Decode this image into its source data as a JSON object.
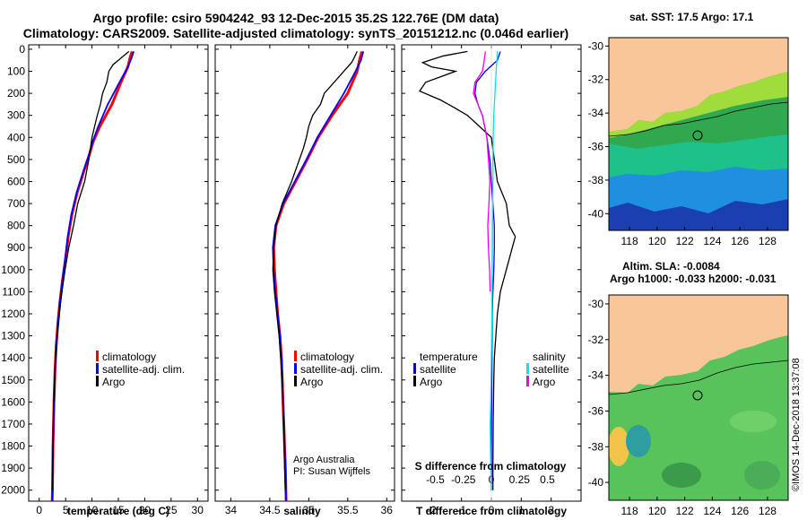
{
  "title": {
    "line1": "Argo profile: csiro 5904242_93 12-Dec-2015 35.2S 122.76E (DM data)",
    "line2": "Climatology: CARS2009. Satellite-adjusted climatology: synTS_20151212.nc (0.046d earlier)"
  },
  "colors": {
    "climatology": "#ff0000",
    "satellite": "#0000ff",
    "argo": "#000000",
    "sal_satellite": "#00e5ee",
    "sal_argo": "#ee00ee",
    "land": "#f9c699"
  },
  "depth_ticks": [
    0,
    100,
    200,
    300,
    400,
    500,
    600,
    700,
    800,
    900,
    1000,
    1100,
    1200,
    1300,
    1400,
    1500,
    1600,
    1700,
    1800,
    1900,
    2000
  ],
  "chart_data": [
    {
      "type": "line",
      "xlabel": "temperature (deg C)",
      "xlim": [
        -2,
        32
      ],
      "ylim": [
        2050,
        -20
      ],
      "xticks": [
        0,
        5,
        10,
        15,
        20,
        25,
        30
      ],
      "legend": [
        "climatology",
        "satellite-adj. clim.",
        "Argo"
      ],
      "series": [
        {
          "name": "climatology",
          "values": [
            [
              17.6,
              10
            ],
            [
              17.2,
              40
            ],
            [
              16.8,
              80
            ],
            [
              15.5,
              150
            ],
            [
              13.8,
              250
            ],
            [
              11.5,
              350
            ],
            [
              10.2,
              420
            ],
            [
              9.5,
              480
            ],
            [
              8.5,
              550
            ],
            [
              7.2,
              650
            ],
            [
              6.2,
              750
            ],
            [
              5.5,
              850
            ],
            [
              5.0,
              950
            ],
            [
              4.4,
              1050
            ],
            [
              3.9,
              1150
            ],
            [
              3.5,
              1250
            ],
            [
              3.2,
              1350
            ],
            [
              3.0,
              1450
            ],
            [
              2.8,
              1600
            ],
            [
              2.6,
              1800
            ],
            [
              2.5,
              2000
            ],
            [
              2.45,
              2050
            ]
          ]
        },
        {
          "name": "satellite-adj. clim.",
          "values": [
            [
              17.9,
              10
            ],
            [
              17.5,
              40
            ],
            [
              16.8,
              80
            ],
            [
              15.2,
              150
            ],
            [
              13.0,
              250
            ],
            [
              11.2,
              350
            ],
            [
              10.1,
              420
            ],
            [
              9.4,
              480
            ],
            [
              8.4,
              550
            ],
            [
              7.1,
              650
            ],
            [
              6.1,
              750
            ],
            [
              5.4,
              850
            ],
            [
              4.9,
              950
            ],
            [
              4.4,
              1050
            ],
            [
              3.9,
              1150
            ],
            [
              3.5,
              1250
            ],
            [
              3.2,
              1350
            ],
            [
              3.0,
              1450
            ],
            [
              2.8,
              1600
            ],
            [
              2.6,
              1800
            ],
            [
              2.5,
              2000
            ],
            [
              2.45,
              2050
            ]
          ]
        },
        {
          "name": "Argo",
          "values": [
            [
              17.0,
              10
            ],
            [
              16.0,
              30
            ],
            [
              15.0,
              50
            ],
            [
              14.0,
              70
            ],
            [
              13.2,
              100
            ],
            [
              12.8,
              150
            ],
            [
              12.0,
              200
            ],
            [
              11.6,
              250
            ],
            [
              11.0,
              300
            ],
            [
              10.5,
              350
            ],
            [
              10.0,
              400
            ],
            [
              9.7,
              450
            ],
            [
              9.4,
              500
            ],
            [
              8.6,
              600
            ],
            [
              7.3,
              700
            ],
            [
              6.5,
              800
            ],
            [
              5.6,
              900
            ],
            [
              4.9,
              1000
            ],
            [
              4.3,
              1100
            ],
            [
              3.8,
              1200
            ],
            [
              3.4,
              1300
            ],
            [
              3.1,
              1400
            ],
            [
              2.9,
              1500
            ],
            [
              2.7,
              1650
            ],
            [
              2.6,
              1800
            ],
            [
              2.5,
              2000
            ]
          ]
        }
      ]
    },
    {
      "type": "line",
      "xlabel": "salinity",
      "xlim": [
        33.8,
        36.1
      ],
      "ylim": [
        2050,
        -20
      ],
      "xticks": [
        34,
        34.5,
        35,
        35.5,
        36
      ],
      "legend": [
        "climatology",
        "satellite-adj. clim.",
        "Argo"
      ],
      "annotations": [
        "Argo Australia",
        "PI: Susan Wijffels"
      ],
      "series": [
        {
          "name": "climatology",
          "values": [
            [
              35.68,
              10
            ],
            [
              35.65,
              50
            ],
            [
              35.62,
              100
            ],
            [
              35.5,
              200
            ],
            [
              35.3,
              300
            ],
            [
              35.12,
              400
            ],
            [
              34.98,
              500
            ],
            [
              34.83,
              600
            ],
            [
              34.68,
              700
            ],
            [
              34.58,
              800
            ],
            [
              34.55,
              900
            ],
            [
              34.56,
              1000
            ],
            [
              34.58,
              1100
            ],
            [
              34.6,
              1200
            ],
            [
              34.63,
              1300
            ],
            [
              34.65,
              1400
            ],
            [
              34.66,
              1500
            ],
            [
              34.68,
              1700
            ],
            [
              34.7,
              1900
            ],
            [
              34.71,
              2050
            ]
          ]
        },
        {
          "name": "satellite-adj. clim.",
          "values": [
            [
              35.7,
              10
            ],
            [
              35.67,
              50
            ],
            [
              35.6,
              100
            ],
            [
              35.45,
              200
            ],
            [
              35.28,
              300
            ],
            [
              35.11,
              400
            ],
            [
              34.97,
              500
            ],
            [
              34.82,
              600
            ],
            [
              34.67,
              700
            ],
            [
              34.57,
              800
            ],
            [
              34.54,
              900
            ],
            [
              34.55,
              1000
            ],
            [
              34.57,
              1100
            ],
            [
              34.6,
              1200
            ],
            [
              34.63,
              1300
            ],
            [
              34.65,
              1400
            ],
            [
              34.66,
              1500
            ],
            [
              34.68,
              1700
            ],
            [
              34.7,
              1900
            ],
            [
              34.71,
              2050
            ]
          ]
        },
        {
          "name": "Argo",
          "values": [
            [
              35.62,
              10
            ],
            [
              35.58,
              40
            ],
            [
              35.55,
              60
            ],
            [
              35.5,
              80
            ],
            [
              35.4,
              120
            ],
            [
              35.3,
              160
            ],
            [
              35.2,
              200
            ],
            [
              35.15,
              250
            ],
            [
              35.05,
              300
            ],
            [
              35.0,
              350
            ],
            [
              34.97,
              400
            ],
            [
              34.93,
              450
            ],
            [
              34.88,
              500
            ],
            [
              34.78,
              600
            ],
            [
              34.66,
              700
            ],
            [
              34.58,
              800
            ],
            [
              34.55,
              900
            ],
            [
              34.54,
              1000
            ],
            [
              34.56,
              1100
            ],
            [
              34.59,
              1200
            ],
            [
              34.62,
              1300
            ],
            [
              34.64,
              1400
            ],
            [
              34.66,
              1500
            ],
            [
              34.68,
              1700
            ],
            [
              34.69,
              1900
            ],
            [
              34.7,
              2000
            ]
          ]
        }
      ]
    },
    {
      "type": "line",
      "xlabel": "T difference from climatology",
      "xlim": [
        -3,
        3
      ],
      "ylim": [
        2050,
        -20
      ],
      "xticks": [
        -2,
        -1,
        0,
        1,
        2
      ],
      "xlabel2": "S difference from climatology",
      "xticks2": [
        -0.5,
        -0.25,
        0,
        0.25,
        0.5
      ],
      "legend_left_title": "temperature",
      "legend_right_title": "salinity",
      "legend_left": [
        "satellite",
        "Argo"
      ],
      "legend_right": [
        "satellite",
        "Argo"
      ],
      "series": [
        {
          "name": "temperature satellite",
          "values": [
            [
              0.3,
              10
            ],
            [
              0.2,
              50
            ],
            [
              -0.2,
              100
            ],
            [
              -0.5,
              150
            ],
            [
              -0.55,
              200
            ],
            [
              -0.45,
              250
            ],
            [
              -0.3,
              300
            ],
            [
              -0.15,
              400
            ],
            [
              -0.05,
              500
            ],
            [
              0.0,
              600
            ],
            [
              0.05,
              700
            ],
            [
              0.1,
              800
            ],
            [
              0.1,
              900
            ],
            [
              0.08,
              1000
            ],
            [
              0.05,
              1100
            ],
            [
              0.03,
              1200
            ],
            [
              0.02,
              1400
            ],
            [
              0.01,
              1600
            ],
            [
              0.0,
              1800
            ],
            [
              0.0,
              2000
            ]
          ]
        },
        {
          "name": "temperature Argo",
          "values": [
            [
              -0.8,
              10
            ],
            [
              -1.6,
              30
            ],
            [
              -2.3,
              60
            ],
            [
              -2.0,
              80
            ],
            [
              -1.2,
              100
            ],
            [
              -1.8,
              130
            ],
            [
              -2.2,
              150
            ],
            [
              -2.4,
              190
            ],
            [
              -1.7,
              230
            ],
            [
              -1.3,
              260
            ],
            [
              -0.8,
              300
            ],
            [
              -0.4,
              350
            ],
            [
              0.0,
              400
            ],
            [
              0.1,
              500
            ],
            [
              0.2,
              600
            ],
            [
              0.5,
              700
            ],
            [
              0.6,
              800
            ],
            [
              0.8,
              850
            ],
            [
              0.7,
              900
            ],
            [
              0.5,
              1000
            ],
            [
              0.3,
              1100
            ],
            [
              0.2,
              1200
            ],
            [
              0.15,
              1300
            ],
            [
              0.1,
              1400
            ],
            [
              0.08,
              1500
            ],
            [
              0.06,
              1700
            ],
            [
              0.05,
              1900
            ],
            [
              0.05,
              2000
            ]
          ]
        },
        {
          "name": "salinity satellite",
          "values": [
            [
              0.2,
              10
            ],
            [
              0.18,
              60
            ],
            [
              0.16,
              100
            ],
            [
              0.12,
              200
            ],
            [
              0.08,
              300
            ],
            [
              0.06,
              400
            ],
            [
              0.05,
              600
            ],
            [
              0.04,
              800
            ],
            [
              0.03,
              1000
            ],
            [
              0.02,
              1200
            ],
            [
              0.0,
              1400
            ],
            [
              -0.02,
              1600
            ],
            [
              -0.04,
              1700
            ],
            [
              -0.02,
              1900
            ],
            [
              0.0,
              2000
            ]
          ]
        },
        {
          "name": "salinity Argo",
          "values": [
            [
              -0.2,
              10
            ],
            [
              -0.25,
              60
            ],
            [
              -0.3,
              100
            ],
            [
              -0.55,
              150
            ],
            [
              -0.6,
              200
            ],
            [
              -0.45,
              250
            ],
            [
              -0.3,
              300
            ],
            [
              -0.15,
              400
            ],
            [
              -0.1,
              500
            ],
            [
              -0.05,
              600
            ],
            [
              -0.08,
              700
            ],
            [
              -0.12,
              800
            ],
            [
              -0.1,
              900
            ],
            [
              -0.06,
              1000
            ],
            [
              -0.04,
              1100
            ]
          ]
        }
      ]
    }
  ],
  "maps": {
    "sst": {
      "title": "sat. SST: 17.5 Argo: 17.1",
      "yticks": [
        -30,
        -32,
        -34,
        -36,
        -38,
        -40
      ],
      "xticks": [
        118,
        120,
        122,
        124,
        126,
        128
      ]
    },
    "sla": {
      "title1": "Altim. SLA: -0.0084",
      "title2": "Argo h1000: -0.033 h2000: -0.031",
      "yticks": [
        -30,
        -32,
        -34,
        -36,
        -38,
        -40
      ],
      "xticks": [
        118,
        120,
        122,
        124,
        126,
        128
      ]
    }
  },
  "credit": "©IMOS 14-Dec-2018 13:37:08"
}
